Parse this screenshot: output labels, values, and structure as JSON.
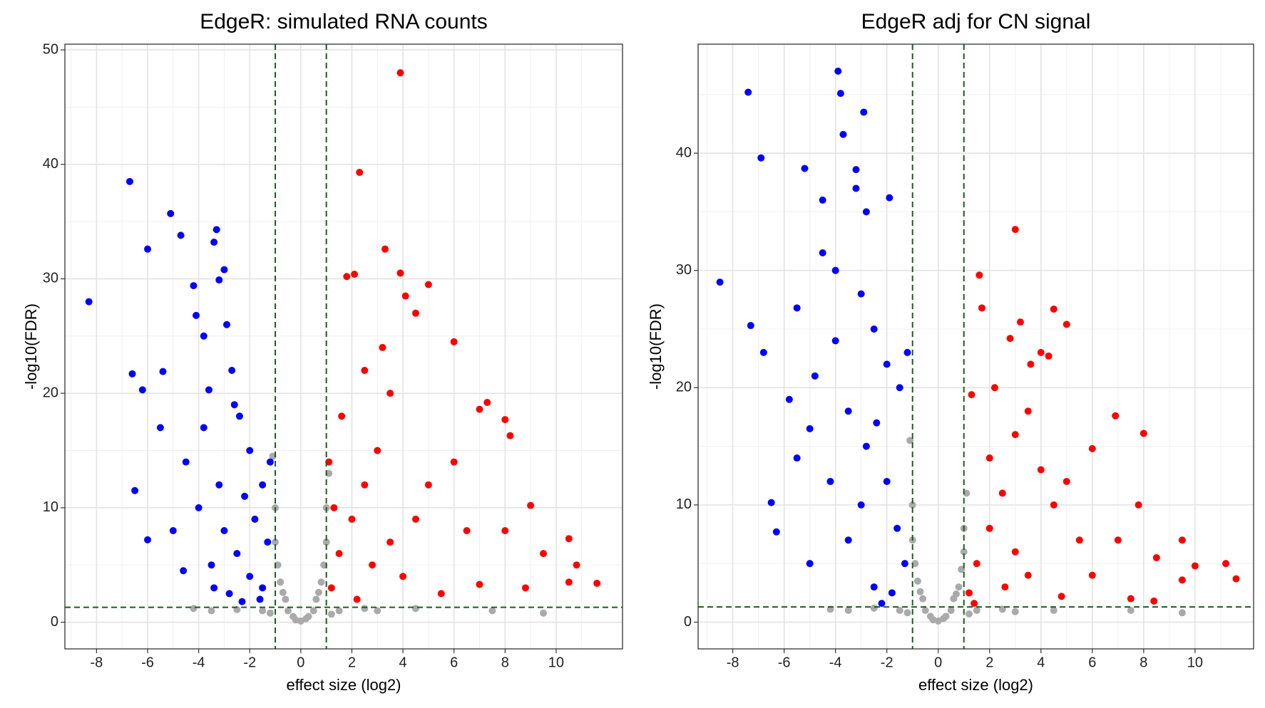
{
  "chart_data": [
    {
      "type": "scatter",
      "title": "EdgeR: simulated RNA counts",
      "xlabel": "effect size (log2)",
      "ylabel": "-log10(FDR)",
      "xlim": [
        -9.24,
        12.6
      ],
      "ylim": [
        -2.33,
        50.5
      ],
      "xticks": [
        -8,
        -6,
        -4,
        -2,
        0,
        2,
        4,
        6,
        8,
        10
      ],
      "yticks": [
        0,
        10,
        20,
        30,
        40,
        50
      ],
      "xminor": [
        -9,
        -7,
        -5,
        -3,
        -1,
        1,
        3,
        5,
        7,
        9,
        11
      ],
      "yminor": [
        5,
        15,
        25,
        35,
        45
      ],
      "grid": true,
      "vlines": [
        -1,
        1
      ],
      "hline": 1.3,
      "line_color": "#1a5e1a",
      "series": [
        {
          "color": "#aaaaaa",
          "x": [
            0,
            -0.3,
            0.3,
            -0.6,
            0.6,
            -0.9,
            0.9,
            -1,
            1,
            -1.1,
            1.1,
            -0.5,
            0.5,
            -0.2,
            0.2,
            -1.5,
            1.5,
            -2.5,
            2.5,
            -3.5,
            3,
            4.5,
            7.5,
            9.5,
            -4.2,
            -0.8,
            0.8,
            -1,
            1,
            0.7,
            -0.7,
            -1.2,
            1.2
          ],
          "values": [
            0.1,
            0.5,
            0.5,
            2,
            2,
            5,
            5,
            10,
            10,
            14.5,
            13,
            1,
            1,
            0.2,
            0.3,
            1,
            1,
            1.1,
            1.2,
            1,
            1,
            1.2,
            1,
            0.8,
            1.2,
            3.5,
            3.5,
            7,
            7,
            2.6,
            2.6,
            0.8,
            0.7
          ]
        },
        {
          "color": "#0000ff",
          "x": [
            -8.3,
            -6.7,
            -6.6,
            -6.5,
            -6.2,
            -6,
            -6,
            -5.5,
            -5.4,
            -5.1,
            -4.7,
            -4.6,
            -4.2,
            -4.1,
            -3.8,
            -3.6,
            -3.4,
            -3.3,
            -3.2,
            -3,
            -2.9,
            -2.7,
            -2.4,
            -2,
            -1.5,
            -1.2,
            -3,
            -2.5,
            -2,
            -1.5,
            -2.8,
            -3.5,
            -1.8,
            -2.2,
            -3.2,
            -4,
            -4.5,
            -5,
            -3.8,
            -2.6,
            -1.3,
            -1.6,
            -2.3,
            -3.4
          ],
          "values": [
            28,
            38.5,
            21.7,
            11.5,
            20.3,
            32.6,
            7.2,
            17,
            21.9,
            35.7,
            33.8,
            4.5,
            29.4,
            26.8,
            25,
            20.3,
            33.2,
            34.3,
            29.9,
            30.8,
            26,
            22,
            18,
            15,
            12,
            14,
            8,
            6,
            4,
            3,
            2.5,
            5,
            9,
            11,
            12,
            10,
            14,
            8,
            17,
            19,
            7,
            2,
            1.8,
            3
          ]
        },
        {
          "color": "#ff0000",
          "x": [
            3.9,
            2.3,
            3.3,
            3.9,
            2.1,
            1.8,
            4.1,
            5,
            4.5,
            6,
            7.3,
            7,
            8,
            8.2,
            6,
            9,
            8,
            9.5,
            10.5,
            10.8,
            10.5,
            11.6,
            8.8,
            7,
            5.5,
            1.2,
            1.5,
            2,
            2.5,
            3,
            3.5,
            1.1,
            1.3,
            2.8,
            3.5,
            4.5,
            5,
            6.5,
            4,
            2.2,
            1.6,
            2.5,
            3.2
          ],
          "values": [
            48,
            39.3,
            32.6,
            30.5,
            30.4,
            30.2,
            28.5,
            29.5,
            27,
            24.5,
            19.2,
            18.6,
            17.7,
            16.3,
            14,
            10.2,
            8,
            6,
            7.3,
            5,
            3.5,
            3.4,
            3,
            3.3,
            2.5,
            3,
            6,
            9,
            12,
            15,
            20,
            14,
            10,
            5,
            7,
            9,
            12,
            8,
            4,
            2,
            18,
            22,
            24
          ]
        }
      ]
    },
    {
      "type": "scatter",
      "title": "EdgeR adj for CN signal",
      "xlabel": "effect size (log2)",
      "ylabel": "-log10(FDR)",
      "xlim": [
        -9.35,
        12.28
      ],
      "ylim": [
        -2.28,
        49.3
      ],
      "xticks": [
        -8,
        -6,
        -4,
        -2,
        0,
        2,
        4,
        6,
        8,
        10
      ],
      "yticks": [
        0,
        10,
        20,
        30,
        40
      ],
      "xminor": [
        -9,
        -7,
        -5,
        -3,
        -1,
        1,
        3,
        5,
        7,
        9,
        11
      ],
      "yminor": [
        5,
        15,
        25,
        35,
        45
      ],
      "grid": true,
      "vlines": [
        -1,
        1
      ],
      "hline": 1.3,
      "line_color": "#1a5e1a",
      "series": [
        {
          "color": "#aaaaaa",
          "x": [
            0,
            -0.3,
            0.3,
            -0.6,
            0.6,
            -0.9,
            0.9,
            -1,
            1,
            -1.1,
            1.1,
            -0.5,
            0.5,
            -0.2,
            0.2,
            -1.5,
            1.5,
            -2.5,
            2.5,
            -3.5,
            3,
            4.5,
            7.5,
            9.5,
            -4.2,
            -0.8,
            0.8,
            -1,
            1,
            0.7,
            -0.7,
            -1.2,
            1.2
          ],
          "values": [
            0.1,
            0.5,
            0.5,
            2,
            2,
            5,
            4.5,
            10,
            8,
            15.5,
            11,
            1,
            1,
            0.2,
            0.3,
            1,
            1,
            1.2,
            1.1,
            1,
            0.9,
            1,
            1,
            0.8,
            1.1,
            3.5,
            3,
            7,
            6,
            2.4,
            2.6,
            0.8,
            0.7
          ]
        },
        {
          "color": "#0000ff",
          "x": [
            -8.5,
            -7.4,
            -7.3,
            -6.9,
            -6.8,
            -6.5,
            -6.3,
            -5.5,
            -5.2,
            -5,
            -5,
            -4.5,
            -4.5,
            -3.9,
            -3.8,
            -3.7,
            -3.2,
            -3.2,
            -2.9,
            -2.8,
            -1.9,
            -3,
            -2.5,
            -2,
            -1.5,
            -1.2,
            -4,
            -4.8,
            -3.5,
            -2.8,
            -2,
            -1.6,
            -1.3,
            -2.5,
            -3.5,
            -4.2,
            -5.5,
            -2.2,
            -1.8,
            -3,
            -2.4,
            -4,
            -5.8
          ],
          "values": [
            29,
            45.2,
            25.3,
            39.6,
            23,
            10.2,
            7.7,
            26.8,
            38.7,
            16.5,
            5,
            36,
            31.5,
            47,
            45.1,
            41.6,
            38.6,
            37,
            43.5,
            35,
            36.2,
            28,
            25,
            22,
            20,
            23,
            30,
            21,
            18,
            15,
            12,
            8,
            5,
            3,
            7,
            12,
            14,
            1.6,
            2.5,
            10,
            17,
            24,
            19
          ]
        },
        {
          "color": "#ff0000",
          "x": [
            3,
            1.6,
            1.7,
            4.5,
            5,
            3.2,
            2.8,
            4,
            4.3,
            3.6,
            6.9,
            8,
            3.5,
            3,
            6,
            7.8,
            9.5,
            11.2,
            11.6,
            9.5,
            10,
            7.5,
            6,
            5.5,
            4.5,
            1.2,
            1.5,
            2,
            2.5,
            3,
            3.5,
            4,
            2,
            1.3,
            2.2,
            5,
            7,
            8.5,
            2.6,
            1.4,
            4.8,
            8.4
          ],
          "values": [
            33.5,
            29.6,
            26.8,
            26.7,
            25.4,
            25.6,
            24.2,
            23,
            22.7,
            22,
            17.6,
            16.1,
            18,
            16,
            14.8,
            10,
            7,
            5,
            3.7,
            3.6,
            4.8,
            2,
            4,
            7,
            10,
            2.5,
            5,
            8,
            11,
            6,
            4,
            13,
            14,
            19.4,
            20,
            12,
            7,
            5.5,
            3,
            1.6,
            2.2,
            1.8
          ]
        }
      ]
    }
  ]
}
